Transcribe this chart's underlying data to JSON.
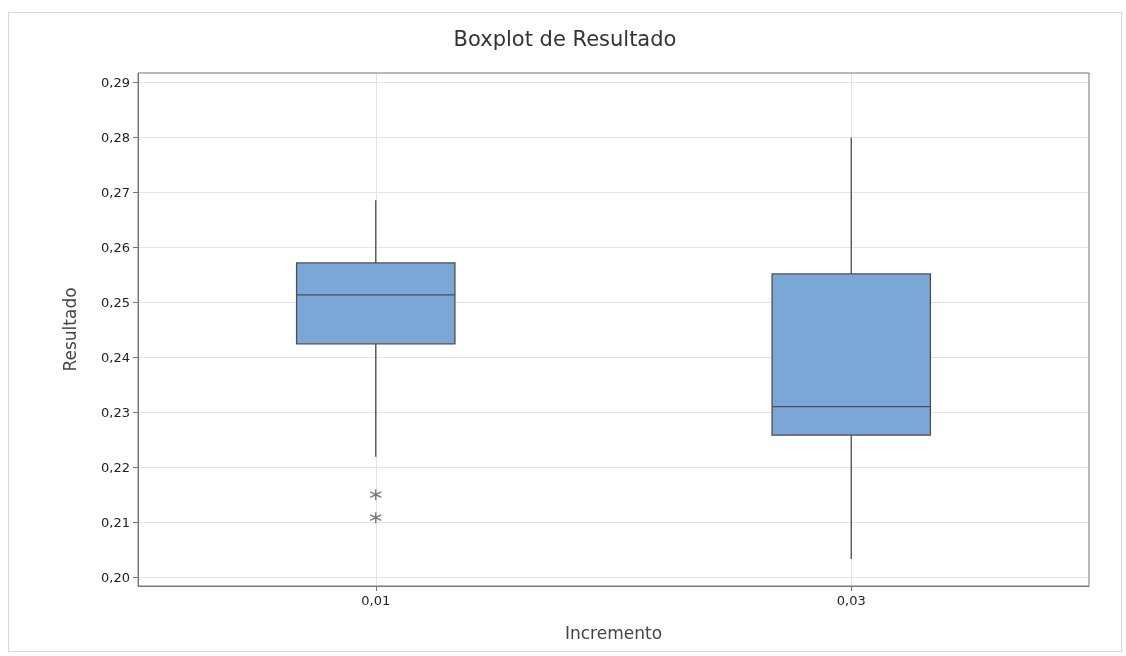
{
  "chart_data": {
    "type": "box",
    "title": "Boxplot de Resultado",
    "xlabel": "Incremento",
    "ylabel": "Resultado",
    "categories": [
      "0,01",
      "0,03"
    ],
    "series": [
      {
        "type": "box",
        "color": "#7ba7d8",
        "boxes": [
          {
            "low": 0.222,
            "q1": 0.2425,
            "median": 0.2514,
            "q3": 0.2572,
            "high": 0.2686
          },
          {
            "low": 0.2034,
            "q1": 0.2259,
            "median": 0.2311,
            "q3": 0.2552,
            "high": 0.28
          }
        ]
      },
      {
        "type": "scatter",
        "color": "#5a5a5a",
        "x": [
          "0,01",
          "0,01"
        ],
        "values": [
          0.2151,
          0.2109
        ]
      }
    ],
    "ylim": [
      0.1985,
      0.2917
    ],
    "yticks": [
      {
        "value": 0.2,
        "label": "0,20"
      },
      {
        "value": 0.21,
        "label": "0,21"
      },
      {
        "value": 0.22,
        "label": "0,22"
      },
      {
        "value": 0.23,
        "label": "0,23"
      },
      {
        "value": 0.24,
        "label": "0,24"
      },
      {
        "value": 0.25,
        "label": "0,25"
      },
      {
        "value": 0.26,
        "label": "0,26"
      },
      {
        "value": 0.27,
        "label": "0,27"
      },
      {
        "value": 0.28,
        "label": "0,28"
      },
      {
        "value": 0.29,
        "label": "0,29"
      }
    ],
    "grid": true
  }
}
